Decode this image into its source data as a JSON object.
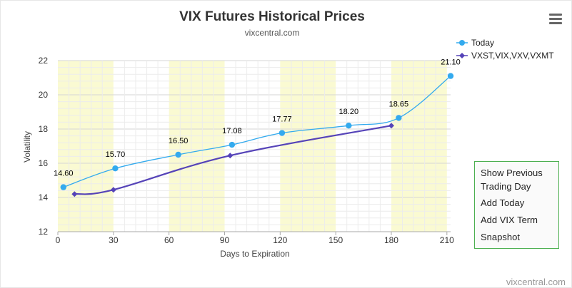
{
  "chart_data": {
    "type": "line",
    "title": "VIX Futures Historical Prices",
    "subtitle": "vixcentral.com",
    "xlabel": "Days to Expiration",
    "ylabel": "Volatility",
    "xlim": [
      0,
      212
    ],
    "ylim": [
      12,
      22
    ],
    "x_ticks": [
      "0",
      "30",
      "60",
      "90",
      "120",
      "150",
      "180",
      "210"
    ],
    "y_ticks": [
      "12",
      "14",
      "16",
      "18",
      "20",
      "22"
    ],
    "grid": true,
    "alternating_bands": [
      [
        0,
        30
      ],
      [
        60,
        90
      ],
      [
        120,
        150
      ],
      [
        180,
        210
      ]
    ],
    "legend_position": "top-right",
    "series": [
      {
        "name": "Today",
        "color": "#33aaee",
        "marker": "circle",
        "x": [
          3,
          31,
          65,
          94,
          121,
          157,
          184,
          212
        ],
        "y": [
          14.6,
          15.7,
          16.5,
          17.08,
          17.77,
          18.2,
          18.65,
          21.1
        ],
        "labels": [
          "14.60",
          "15.70",
          "16.50",
          "17.08",
          "17.77",
          "18.20",
          "18.65",
          "21.10"
        ]
      },
      {
        "name": "VXST,VIX,VXV,VXMT",
        "color": "#5543b8",
        "marker": "diamond",
        "x": [
          9,
          30,
          93,
          180
        ],
        "y": [
          14.2,
          14.45,
          16.45,
          18.2
        ]
      }
    ]
  },
  "menu": {
    "icon": "hamburger-menu-icon"
  },
  "side_panel": {
    "show_previous": "Show Previous Trading Day",
    "add_today": "Add Today",
    "add_vix_term": "Add VIX Term",
    "snapshot": "Snapshot"
  },
  "credit": "vixcentral.com"
}
